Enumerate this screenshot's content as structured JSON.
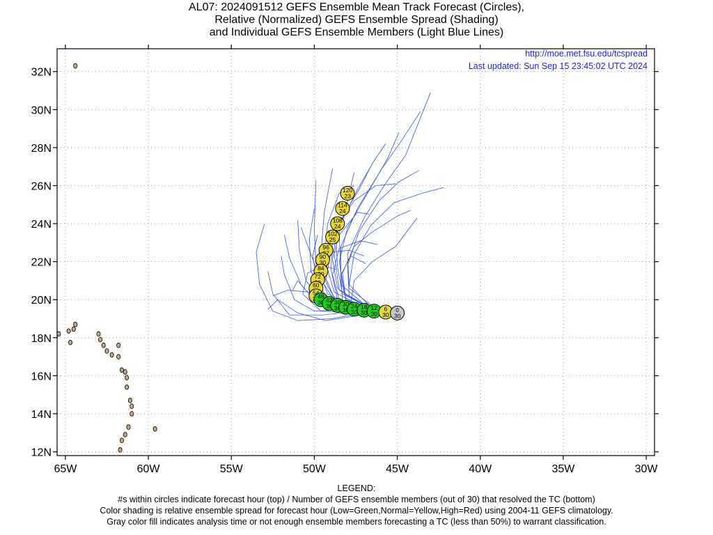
{
  "title": {
    "line1": "AL07: 2024091512 GEFS Ensemble Mean Track Forecast (Circles),",
    "line2": "Relative (Normalized) GEFS Ensemble Spread (Shading)",
    "line3": "and Individual GEFS Ensemble Members (Light Blue Lines)"
  },
  "info": {
    "url": "http://moe.met.fsu.edu/tcspread",
    "updated": "Last updated: Sun Sep 15 23:45:02 UTC 2024"
  },
  "legend": {
    "heading": "LEGEND:",
    "line1": "#s within circles indicate forecast hour (top) / Number of GEFS ensemble members (out of 30) that resolved the TC (bottom)",
    "line2": "Color shading is relative ensemble spread for forecast hour (Low=Green,Normal=Yellow,High=Red) using 2004-11 GEFS climatology.",
    "line3": "Gray color fill indicates analysis time or not enough ensemble members forecasting a TC (less than 50%) to warrant classification."
  },
  "colors": {
    "gray": "#c8c8c8",
    "green": "#22cc22",
    "yellow": "#e6d83c",
    "member_line": "#3355ee",
    "land": "#c8a47c",
    "grid": "#999999"
  },
  "chart_data": {
    "type": "map",
    "lon_ticks": [
      -65,
      -60,
      -55,
      -50,
      -45,
      -40,
      -35,
      -30
    ],
    "lon_labels": [
      "65W",
      "60W",
      "55W",
      "50W",
      "45W",
      "40W",
      "35W",
      "30W"
    ],
    "lat_ticks": [
      12,
      14,
      16,
      18,
      20,
      22,
      24,
      26,
      28,
      30,
      32
    ],
    "lat_labels": [
      "12N",
      "14N",
      "16N",
      "18N",
      "20N",
      "22N",
      "24N",
      "26N",
      "28N",
      "30N",
      "32N"
    ],
    "lon_range": [
      -65.5,
      -29.5
    ],
    "lat_range": [
      11.8,
      33.2
    ],
    "grid": true,
    "mean_track": [
      {
        "hour": "0",
        "members": "30",
        "lon": -45.0,
        "lat": 19.3,
        "color": "gray"
      },
      {
        "hour": "6",
        "members": "30",
        "lon": -45.7,
        "lat": 19.35,
        "color": "yellow"
      },
      {
        "hour": "12",
        "members": "30",
        "lon": -46.4,
        "lat": 19.4,
        "color": "green"
      },
      {
        "hour": "18",
        "members": "30",
        "lon": -47.0,
        "lat": 19.45,
        "color": "green"
      },
      {
        "hour": "24",
        "members": "30",
        "lon": -47.6,
        "lat": 19.5,
        "color": "green"
      },
      {
        "hour": "30",
        "members": "30",
        "lon": -48.1,
        "lat": 19.6,
        "color": "green"
      },
      {
        "hour": "36",
        "members": "30",
        "lon": -48.6,
        "lat": 19.7,
        "color": "green"
      },
      {
        "hour": "42",
        "members": "30",
        "lon": -49.1,
        "lat": 19.8,
        "color": "green"
      },
      {
        "hour": "48",
        "members": "30",
        "lon": -49.6,
        "lat": 20.0,
        "color": "green"
      },
      {
        "hour": "54",
        "members": "30",
        "lon": -49.9,
        "lat": 20.2,
        "color": "yellow"
      },
      {
        "hour": "60",
        "members": "30",
        "lon": -49.9,
        "lat": 20.6,
        "color": "yellow"
      },
      {
        "hour": "72",
        "members": "30",
        "lon": -49.8,
        "lat": 21.05,
        "color": "yellow"
      },
      {
        "hour": "84",
        "members": "30",
        "lon": -49.6,
        "lat": 21.5,
        "color": "yellow"
      },
      {
        "hour": "90",
        "members": "30",
        "lon": -49.5,
        "lat": 22.1,
        "color": "yellow"
      },
      {
        "hour": "96",
        "members": "27",
        "lon": -49.3,
        "lat": 22.6,
        "color": "yellow"
      },
      {
        "hour": "102",
        "members": "25",
        "lon": -48.9,
        "lat": 23.3,
        "color": "yellow"
      },
      {
        "hour": "108",
        "members": "24",
        "lon": -48.6,
        "lat": 24.0,
        "color": "yellow"
      },
      {
        "hour": "114",
        "members": "24",
        "lon": -48.3,
        "lat": 24.8,
        "color": "yellow"
      },
      {
        "hour": "120",
        "members": "23",
        "lon": -48.0,
        "lat": 25.6,
        "color": "yellow"
      }
    ],
    "members": [
      [
        [
          -45.0,
          19.3
        ],
        [
          -47.0,
          19.3
        ],
        [
          -49.0,
          19.0
        ],
        [
          -51.0,
          18.9
        ],
        [
          -52.5,
          19.4
        ],
        [
          -53.3,
          20.8
        ],
        [
          -53.5,
          22.5
        ],
        [
          -53.0,
          24.0
        ]
      ],
      [
        [
          -45.0,
          19.3
        ],
        [
          -47.2,
          19.4
        ],
        [
          -49.5,
          19.2
        ],
        [
          -51.5,
          19.2
        ],
        [
          -52.5,
          20.3
        ],
        [
          -52.8,
          21.5
        ]
      ],
      [
        [
          -45.0,
          19.3
        ],
        [
          -47.5,
          19.5
        ],
        [
          -50.0,
          19.4
        ],
        [
          -51.2,
          20.0
        ],
        [
          -51.8,
          21.3
        ],
        [
          -52.0,
          22.3
        ]
      ],
      [
        [
          -45.0,
          19.3
        ],
        [
          -47.3,
          19.5
        ],
        [
          -49.7,
          19.7
        ],
        [
          -50.8,
          20.8
        ],
        [
          -51.5,
          22.2
        ],
        [
          -51.8,
          23.4
        ]
      ],
      [
        [
          -45.0,
          19.3
        ],
        [
          -47.0,
          19.6
        ],
        [
          -49.5,
          19.9
        ],
        [
          -50.5,
          21.0
        ],
        [
          -50.9,
          22.6
        ],
        [
          -51.0,
          24.2
        ]
      ],
      [
        [
          -45.0,
          19.3
        ],
        [
          -47.2,
          19.6
        ],
        [
          -49.4,
          20.1
        ],
        [
          -50.2,
          21.5
        ],
        [
          -50.3,
          23.2
        ],
        [
          -50.0,
          24.8
        ]
      ],
      [
        [
          -45.0,
          19.3
        ],
        [
          -47.0,
          19.5
        ],
        [
          -49.2,
          20.3
        ],
        [
          -49.9,
          21.9
        ],
        [
          -50.0,
          23.7
        ],
        [
          -49.9,
          26.3
        ]
      ],
      [
        [
          -45.0,
          19.3
        ],
        [
          -46.8,
          19.5
        ],
        [
          -48.8,
          20.4
        ],
        [
          -49.4,
          22.2
        ],
        [
          -49.2,
          24.0
        ],
        [
          -48.5,
          25.6
        ],
        [
          -47.6,
          26.0
        ]
      ],
      [
        [
          -45.0,
          19.3
        ],
        [
          -47.0,
          19.4
        ],
        [
          -48.6,
          20.0
        ],
        [
          -49.0,
          21.6
        ],
        [
          -48.9,
          23.2
        ],
        [
          -48.2,
          24.5
        ],
        [
          -47.3,
          25.8
        ],
        [
          -46.6,
          27.0
        ]
      ],
      [
        [
          -45.0,
          19.3
        ],
        [
          -46.7,
          19.6
        ],
        [
          -48.5,
          20.5
        ],
        [
          -48.8,
          22.4
        ],
        [
          -48.3,
          24.2
        ],
        [
          -47.4,
          25.8
        ],
        [
          -46.4,
          27.3
        ],
        [
          -45.7,
          28.2
        ]
      ],
      [
        [
          -45.0,
          19.3
        ],
        [
          -46.5,
          19.5
        ],
        [
          -48.2,
          20.3
        ],
        [
          -48.5,
          22.0
        ],
        [
          -48.0,
          23.8
        ],
        [
          -46.8,
          25.6
        ],
        [
          -45.6,
          27.4
        ],
        [
          -44.9,
          28.8
        ]
      ],
      [
        [
          -45.0,
          19.3
        ],
        [
          -46.8,
          19.6
        ],
        [
          -48.4,
          20.8
        ],
        [
          -48.4,
          22.8
        ],
        [
          -47.4,
          24.8
        ],
        [
          -46.0,
          26.8
        ],
        [
          -44.8,
          28.3
        ],
        [
          -43.6,
          29.9
        ]
      ],
      [
        [
          -45.0,
          19.3
        ],
        [
          -46.4,
          19.6
        ],
        [
          -47.9,
          20.6
        ],
        [
          -48.0,
          22.4
        ],
        [
          -47.0,
          24.3
        ],
        [
          -45.8,
          26.0
        ],
        [
          -44.5,
          27.6
        ],
        [
          -43.0,
          30.9
        ]
      ],
      [
        [
          -45.0,
          19.3
        ],
        [
          -46.6,
          19.5
        ],
        [
          -47.9,
          20.2
        ],
        [
          -48.0,
          21.8
        ],
        [
          -47.3,
          23.6
        ],
        [
          -46.1,
          25.2
        ],
        [
          -44.9,
          26.2
        ],
        [
          -43.7,
          26.8
        ]
      ],
      [
        [
          -45.0,
          19.3
        ],
        [
          -46.6,
          19.6
        ],
        [
          -47.9,
          20.8
        ],
        [
          -47.6,
          22.4
        ],
        [
          -46.6,
          23.9
        ],
        [
          -45.2,
          25.1
        ],
        [
          -43.5,
          25.6
        ],
        [
          -42.2,
          25.9
        ]
      ],
      [
        [
          -45.0,
          19.3
        ],
        [
          -46.7,
          19.5
        ],
        [
          -48.1,
          20.0
        ],
        [
          -48.3,
          21.4
        ],
        [
          -47.6,
          22.8
        ],
        [
          -46.6,
          23.5
        ],
        [
          -45.0,
          24.4
        ],
        [
          -44.2,
          24.7
        ]
      ],
      [
        [
          -45.0,
          19.3
        ],
        [
          -46.9,
          19.5
        ],
        [
          -48.5,
          20.0
        ],
        [
          -48.9,
          21.3
        ],
        [
          -48.5,
          22.7
        ],
        [
          -47.2,
          23.1
        ],
        [
          -46.2,
          22.9
        ]
      ],
      [
        [
          -45.0,
          19.3
        ],
        [
          -46.9,
          19.5
        ],
        [
          -48.7,
          19.9
        ],
        [
          -49.3,
          21.1
        ],
        [
          -49.0,
          22.5
        ],
        [
          -47.9,
          22.6
        ],
        [
          -47.0,
          22.3
        ]
      ],
      [
        [
          -45.0,
          19.3
        ],
        [
          -47.0,
          19.4
        ],
        [
          -49.0,
          19.8
        ],
        [
          -49.8,
          20.9
        ],
        [
          -50.1,
          22.3
        ],
        [
          -49.8,
          23.4
        ]
      ],
      [
        [
          -45.0,
          19.3
        ],
        [
          -47.1,
          19.2
        ],
        [
          -49.3,
          18.9
        ],
        [
          -51.0,
          19.3
        ],
        [
          -52.2,
          20.0
        ],
        [
          -52.8,
          19.5
        ]
      ],
      [
        [
          -45.0,
          19.3
        ],
        [
          -47.3,
          19.3
        ],
        [
          -49.6,
          19.4
        ],
        [
          -50.7,
          20.3
        ],
        [
          -50.4,
          21.4
        ],
        [
          -49.5,
          21.8
        ],
        [
          -48.7,
          21.6
        ]
      ],
      [
        [
          -45.0,
          19.3
        ],
        [
          -46.9,
          19.4
        ],
        [
          -48.6,
          19.8
        ],
        [
          -49.3,
          20.9
        ],
        [
          -49.6,
          22.5
        ],
        [
          -49.4,
          24.6
        ],
        [
          -48.9,
          26.9
        ]
      ],
      [
        [
          -45.0,
          19.3
        ],
        [
          -46.7,
          19.6
        ],
        [
          -48.3,
          20.3
        ],
        [
          -48.6,
          21.7
        ],
        [
          -48.7,
          23.2
        ],
        [
          -48.1,
          24.8
        ],
        [
          -47.6,
          26.7
        ]
      ],
      [
        [
          -45.0,
          19.3
        ],
        [
          -46.6,
          19.5
        ],
        [
          -48.1,
          20.0
        ],
        [
          -48.4,
          21.5
        ],
        [
          -48.5,
          23.4
        ],
        [
          -47.4,
          24.6
        ],
        [
          -46.7,
          24.5
        ]
      ],
      [
        [
          -45.0,
          19.3
        ],
        [
          -46.9,
          19.6
        ],
        [
          -48.6,
          20.6
        ],
        [
          -48.9,
          22.1
        ],
        [
          -48.6,
          23.9
        ],
        [
          -47.6,
          25.2
        ],
        [
          -46.3,
          26.0
        ],
        [
          -45.1,
          26.1
        ]
      ],
      [
        [
          -45.0,
          19.3
        ],
        [
          -47.1,
          19.5
        ],
        [
          -48.9,
          20.1
        ],
        [
          -49.7,
          21.2
        ],
        [
          -50.3,
          22.6
        ],
        [
          -50.8,
          23.8
        ]
      ],
      [
        [
          -45.0,
          19.3
        ],
        [
          -47.2,
          19.4
        ],
        [
          -49.1,
          19.7
        ],
        [
          -50.3,
          20.4
        ],
        [
          -51.6,
          20.5
        ],
        [
          -52.5,
          20.2
        ]
      ],
      [
        [
          -45.0,
          19.3
        ],
        [
          -47.0,
          19.3
        ],
        [
          -48.9,
          19.5
        ],
        [
          -50.1,
          20.1
        ],
        [
          -51.0,
          21.0
        ],
        [
          -51.3,
          20.5
        ]
      ],
      [
        [
          -45.0,
          19.3
        ],
        [
          -46.8,
          19.4
        ],
        [
          -48.3,
          19.9
        ],
        [
          -48.4,
          21.3
        ],
        [
          -47.8,
          22.3
        ],
        [
          -46.9,
          21.9
        ]
      ],
      [
        [
          -45.0,
          19.3
        ],
        [
          -46.6,
          19.4
        ],
        [
          -47.8,
          19.8
        ],
        [
          -47.6,
          21.0
        ],
        [
          -46.5,
          22.0
        ],
        [
          -45.1,
          22.8
        ],
        [
          -43.8,
          24.3
        ]
      ]
    ],
    "islands": [
      [
        -64.4,
        32.3
      ],
      [
        -65.4,
        18.2
      ],
      [
        -64.8,
        18.35
      ],
      [
        -64.5,
        18.45
      ],
      [
        -64.4,
        18.7
      ],
      [
        -63.0,
        18.2
      ],
      [
        -62.9,
        17.9
      ],
      [
        -62.7,
        17.6
      ],
      [
        -62.5,
        17.3
      ],
      [
        -62.2,
        17.1
      ],
      [
        -61.8,
        17.6
      ],
      [
        -61.8,
        17.0
      ],
      [
        -61.6,
        16.3
      ],
      [
        -61.4,
        16.2
      ],
      [
        -61.3,
        15.9
      ],
      [
        -61.3,
        15.4
      ],
      [
        -61.1,
        14.7
      ],
      [
        -61.0,
        14.4
      ],
      [
        -61.0,
        14.0
      ],
      [
        -61.2,
        13.3
      ],
      [
        -61.4,
        12.9
      ],
      [
        -61.6,
        12.6
      ],
      [
        -61.7,
        12.1
      ],
      [
        -59.6,
        13.2
      ],
      [
        -64.7,
        17.75
      ]
    ]
  }
}
